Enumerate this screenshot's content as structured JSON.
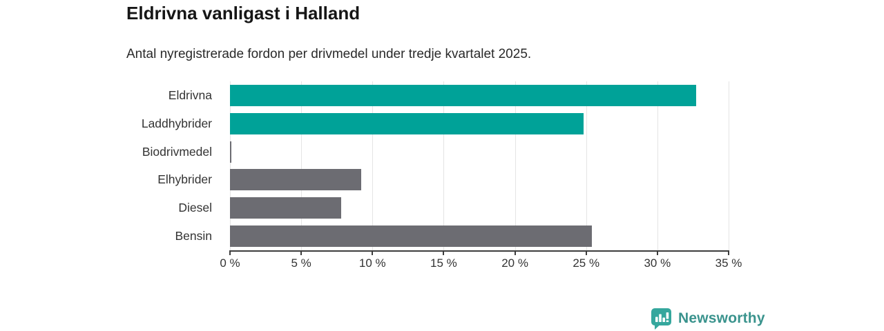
{
  "chart_data": {
    "type": "bar",
    "orientation": "horizontal",
    "title": "Eldrivna vanligast i Halland",
    "subtitle": "Antal nyregistrerade fordon per drivmedel under tredje kvartalet 2025.",
    "categories": [
      "Eldrivna",
      "Laddhybrider",
      "Biodrivmedel",
      "Elhybrider",
      "Diesel",
      "Bensin"
    ],
    "values": [
      32.7,
      24.8,
      0.1,
      9.2,
      7.8,
      25.4
    ],
    "unit": "%",
    "xlim": [
      0,
      35
    ],
    "x_ticks": [
      0,
      5,
      10,
      15,
      20,
      25,
      30,
      35
    ],
    "x_tick_labels": [
      "0 %",
      "5 %",
      "10 %",
      "15 %",
      "20 %",
      "25 %",
      "30 %",
      "35 %"
    ],
    "bar_colors": [
      "#00a298",
      "#00a298",
      "#6c6c72",
      "#6c6c72",
      "#6c6c72",
      "#6c6c72"
    ],
    "grid": true,
    "legend": "none",
    "xlabel": "",
    "ylabel": ""
  },
  "colors": {
    "teal": "#00a298",
    "gray": "#6c6c72",
    "gridline": "#e4e4e4",
    "axis": "#3c3c3c",
    "brand_teal": "#3a938d",
    "brand_icon_teal": "#35a79d"
  },
  "branding": {
    "brand_name": "Newsworthy",
    "icon": "newsworthy-speech-bubble-chart-icon"
  }
}
